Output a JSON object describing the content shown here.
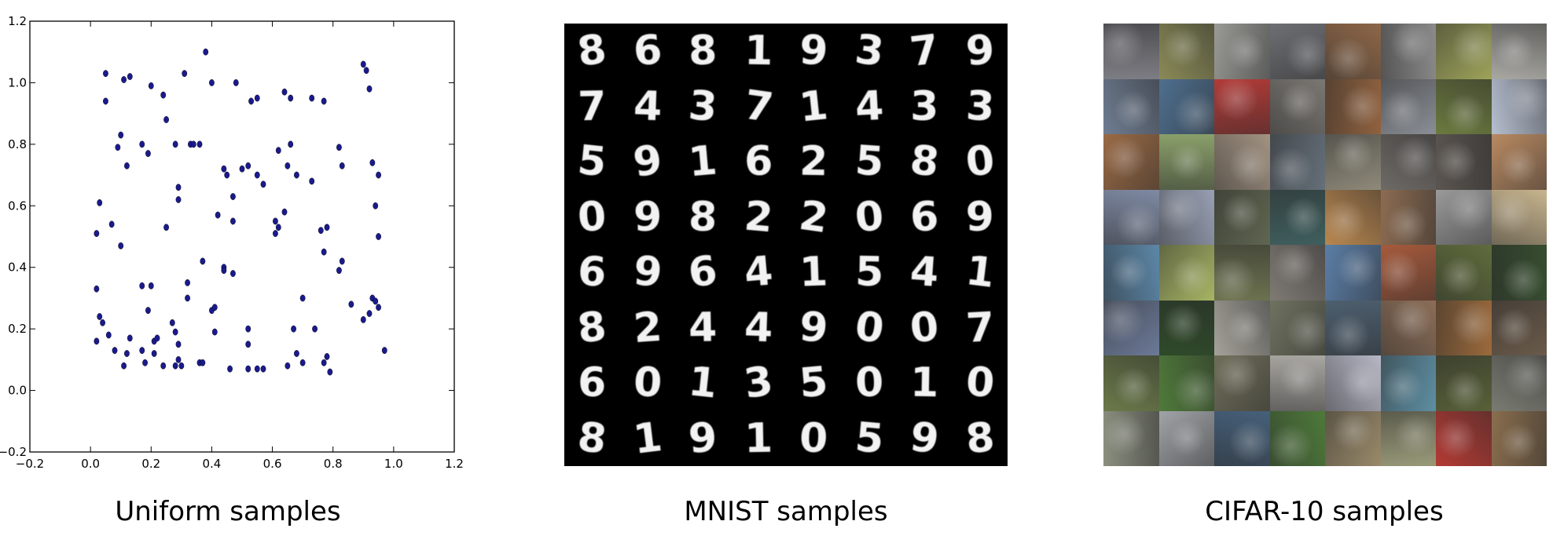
{
  "panels": {
    "uniform": {
      "caption": "Uniform samples"
    },
    "mnist": {
      "caption": "MNIST samples"
    },
    "cifar": {
      "caption": "CIFAR-10 samples"
    }
  },
  "chart_data": {
    "type": "scatter",
    "title": "",
    "xlabel": "",
    "ylabel": "",
    "xlim": [
      -0.2,
      1.2
    ],
    "ylim": [
      -0.2,
      1.2
    ],
    "xticks": [
      "−0.2",
      "0.0",
      "0.2",
      "0.4",
      "0.6",
      "0.8",
      "1.0",
      "1.2"
    ],
    "yticks": [
      "−0.2",
      "0.0",
      "0.2",
      "0.4",
      "0.6",
      "0.8",
      "1.0",
      "1.2"
    ],
    "grid": false,
    "marker_color": "#1a1a8c",
    "x": [
      0.05,
      0.05,
      0.11,
      0.13,
      0.2,
      0.24,
      0.31,
      0.38,
      0.4,
      0.25,
      0.36,
      0.48,
      0.53,
      0.55,
      0.64,
      0.66,
      0.73,
      0.77,
      0.9,
      0.91,
      0.92,
      0.09,
      0.1,
      0.12,
      0.17,
      0.19,
      0.28,
      0.33,
      0.34,
      0.44,
      0.5,
      0.45,
      0.52,
      0.57,
      0.62,
      0.65,
      0.66,
      0.73,
      0.82,
      0.83,
      0.93,
      0.95,
      0.03,
      0.02,
      0.07,
      0.1,
      0.25,
      0.29,
      0.29,
      0.37,
      0.42,
      0.44,
      0.47,
      0.47,
      0.55,
      0.61,
      0.61,
      0.62,
      0.64,
      0.68,
      0.76,
      0.78,
      0.82,
      0.83,
      0.94,
      0.95,
      0.02,
      0.03,
      0.06,
      0.12,
      0.13,
      0.17,
      0.19,
      0.2,
      0.21,
      0.22,
      0.27,
      0.28,
      0.29,
      0.32,
      0.32,
      0.36,
      0.4,
      0.41,
      0.41,
      0.44,
      0.47,
      0.52,
      0.52,
      0.55,
      0.65,
      0.67,
      0.68,
      0.7,
      0.74,
      0.77,
      0.79,
      0.86,
      0.9,
      0.92,
      0.93,
      0.94,
      0.95,
      0.97,
      0.02,
      0.04,
      0.08,
      0.11,
      0.17,
      0.18,
      0.21,
      0.24,
      0.28,
      0.29,
      0.3,
      0.37,
      0.46,
      0.52,
      0.57,
      0.7,
      0.77,
      0.78
    ],
    "y": [
      1.03,
      0.94,
      1.01,
      1.02,
      0.99,
      0.96,
      1.03,
      1.1,
      1.0,
      0.88,
      0.8,
      1.0,
      0.94,
      0.95,
      0.97,
      0.95,
      0.95,
      0.94,
      1.06,
      1.04,
      0.98,
      0.79,
      0.83,
      0.73,
      0.8,
      0.77,
      0.8,
      0.8,
      0.8,
      0.72,
      0.72,
      0.7,
      0.73,
      0.67,
      0.78,
      0.73,
      0.8,
      0.68,
      0.79,
      0.73,
      0.74,
      0.7,
      0.61,
      0.51,
      0.54,
      0.47,
      0.53,
      0.62,
      0.66,
      0.42,
      0.57,
      0.4,
      0.55,
      0.63,
      0.7,
      0.55,
      0.51,
      0.53,
      0.58,
      0.7,
      0.52,
      0.53,
      0.39,
      0.42,
      0.6,
      0.5,
      0.33,
      0.24,
      0.18,
      0.12,
      0.17,
      0.34,
      0.26,
      0.34,
      0.16,
      0.17,
      0.22,
      0.19,
      0.15,
      0.35,
      0.3,
      0.09,
      0.26,
      0.19,
      0.27,
      0.39,
      0.38,
      0.15,
      0.2,
      0.07,
      0.08,
      0.2,
      0.12,
      0.3,
      0.2,
      0.45,
      0.06,
      0.28,
      0.23,
      0.25,
      0.3,
      0.29,
      0.27,
      0.13,
      0.16,
      0.22,
      0.13,
      0.08,
      0.13,
      0.09,
      0.12,
      0.08,
      0.08,
      0.1,
      0.08,
      0.09,
      0.07,
      0.07,
      0.07,
      0.09,
      0.09,
      0.11
    ]
  },
  "mnist": {
    "digits": [
      "8",
      "6",
      "8",
      "1",
      "9",
      "3",
      "7",
      "9",
      "7",
      "4",
      "3",
      "7",
      "1",
      "4",
      "3",
      "3",
      "5",
      "9",
      "1",
      "6",
      "2",
      "5",
      "8",
      "0",
      "0",
      "9",
      "8",
      "2",
      "2",
      "0",
      "6",
      "9",
      "6",
      "9",
      "6",
      "4",
      "1",
      "5",
      "4",
      "1",
      "8",
      "2",
      "4",
      "4",
      "9",
      "0",
      "0",
      "7",
      "6",
      "0",
      "1",
      "3",
      "5",
      "0",
      "1",
      "0",
      "8",
      "1",
      "9",
      "1",
      "0",
      "5",
      "9",
      "8"
    ]
  },
  "cifar": {
    "tile_colors": [
      "#7d7d84",
      "#8a8a57",
      "#9a9b96",
      "#6e6f74",
      "#8e6748",
      "#8b8b8b",
      "#9ea35a",
      "#a9a8a3",
      "#6f7d92",
      "#4e6f8f",
      "#b23b38",
      "#7b7873",
      "#91623f",
      "#8a8f96",
      "#6b7a3f",
      "#b6bfd0",
      "#9a6a45",
      "#8aa06a",
      "#a39382",
      "#65707a",
      "#8f8a7a",
      "#6e6a66",
      "#5b5550",
      "#b98a62",
      "#7f8aa3",
      "#98a0b4",
      "#5f6650",
      "#3f5f5e",
      "#b9874f",
      "#8c6c52",
      "#9a9a9a",
      "#c8b58e",
      "#5c87a8",
      "#a7b564",
      "#6d7350",
      "#7f7a74",
      "#5b7ea6",
      "#a65a3c",
      "#5f6c3c",
      "#364d2f",
      "#6c7a98",
      "#2f4a2a",
      "#a4a29a",
      "#6f7260",
      "#4d5f6f",
      "#8c6e58",
      "#9c6a3c",
      "#6a5a4a",
      "#6b7a4a",
      "#4f7a3a",
      "#6f6e5a",
      "#a9a7a2",
      "#b7b8c6",
      "#5e8fa3",
      "#586038",
      "#7a7b72",
      "#8b8f7f",
      "#a1a4a8",
      "#46607a",
      "#4e7a3a",
      "#9a8a6a",
      "#9a9a7a",
      "#b33a34",
      "#8a6e4e"
    ]
  }
}
